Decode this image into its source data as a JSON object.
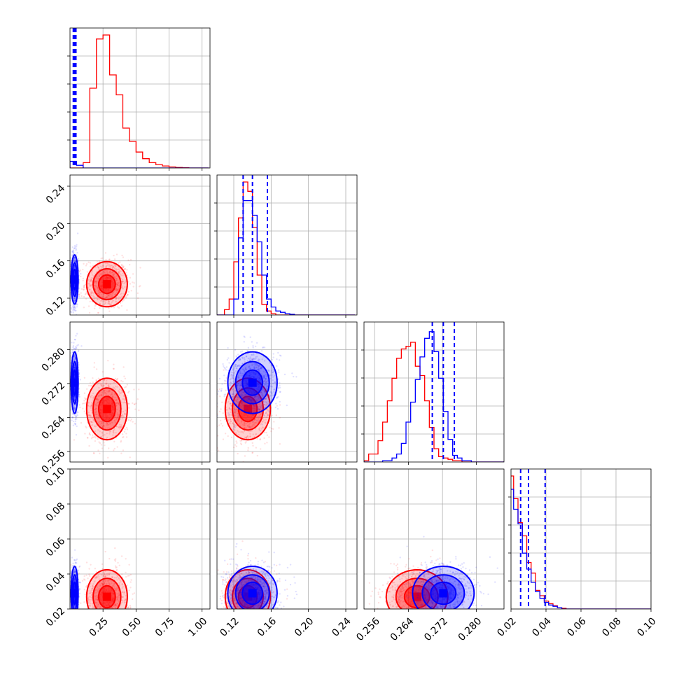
{
  "colors": {
    "red": "#ff0000",
    "blue": "#0000ff",
    "grid": "#b0b0b0",
    "axes": "#000000"
  },
  "chart_data": {
    "type": "corner",
    "variables": [
      {
        "range": [
          0.0,
          1.06
        ],
        "ticks": [
          0.25,
          0.5,
          0.75,
          1.0
        ],
        "tick_labels": [
          "0.25",
          "0.50",
          "0.75",
          "1.00"
        ]
      },
      {
        "range": [
          0.102,
          0.252
        ],
        "ticks": [
          0.12,
          0.16,
          0.2,
          0.24
        ],
        "tick_labels": [
          "0.12",
          "0.16",
          "0.20",
          "0.24"
        ]
      },
      {
        "range": [
          0.2535,
          0.2865
        ],
        "ticks": [
          0.256,
          0.264,
          0.272,
          0.28
        ],
        "tick_labels": [
          "0.256",
          "0.264",
          "0.272",
          "0.280"
        ]
      },
      {
        "range": [
          0.02,
          0.1
        ],
        "ticks": [
          0.02,
          0.04,
          0.06,
          0.08,
          0.1
        ],
        "tick_labels": [
          "0.02",
          "0.04",
          "0.06",
          "0.08",
          "0.10"
        ]
      }
    ],
    "grid": true,
    "series": [
      {
        "color": "#ff0000",
        "histograms": [
          {
            "edges_start": 0.0,
            "bin_width": 0.05,
            "counts": [
              0,
              0,
              0.04,
              0.6,
              0.97,
              1.0,
              0.7,
              0.55,
              0.3,
              0.2,
              0.12,
              0.07,
              0.04,
              0.025,
              0.015,
              0.008,
              0.004,
              0.002,
              0,
              0,
              0
            ]
          },
          {
            "edges_start": 0.1,
            "bin_width": 0.005,
            "counts": [
              0,
              0,
              0.04,
              0.12,
              0.4,
              0.73,
              1.0,
              0.93,
              0.66,
              0.3,
              0.08,
              0.03,
              0.01,
              0,
              0,
              0,
              0,
              0,
              0,
              0,
              0,
              0,
              0,
              0,
              0,
              0,
              0,
              0,
              0,
              0
            ]
          },
          {
            "edges_start": 0.2535,
            "bin_width": 0.0011,
            "counts": [
              0.01,
              0.06,
              0.06,
              0.16,
              0.3,
              0.46,
              0.63,
              0.78,
              0.85,
              0.87,
              0.9,
              0.72,
              0.65,
              0.46,
              0.26,
              0.1,
              0.04,
              0.03,
              0.02,
              0.01,
              0.01,
              0,
              0,
              0,
              0,
              0,
              0,
              0,
              0,
              0
            ]
          },
          {
            "edges_start": 0.0165,
            "bin_width": 0.0025,
            "counts": [
              0.02,
              1.0,
              0.83,
              0.65,
              0.55,
              0.35,
              0.27,
              0.14,
              0.1,
              0.06,
              0.04,
              0.025,
              0.01,
              0.005,
              0,
              0,
              0,
              0,
              0,
              0,
              0,
              0,
              0,
              0,
              0,
              0,
              0,
              0,
              0,
              0,
              0,
              0,
              0,
              0
            ]
          }
        ],
        "centers": [
          0.28,
          0.135,
          0.266,
          0.027
        ],
        "sigmas": [
          0.07,
          0.011,
          0.0033,
          0.007
        ]
      },
      {
        "color": "#0000ff",
        "histograms": [
          {
            "edges_start": 0.0,
            "bin_width": 0.05,
            "counts": [
              0.05,
              0.02,
              0,
              0,
              0,
              0,
              0,
              0,
              0,
              0,
              0,
              0,
              0,
              0,
              0,
              0,
              0,
              0,
              0,
              0,
              0
            ]
          },
          {
            "edges_start": 0.1,
            "bin_width": 0.005,
            "counts": [
              0,
              0,
              0,
              0,
              0.12,
              0.58,
              0.86,
              0.86,
              0.75,
              0.55,
              0.3,
              0.12,
              0.06,
              0.03,
              0.02,
              0.01,
              0.005,
              0,
              0,
              0,
              0,
              0,
              0,
              0,
              0,
              0,
              0,
              0,
              0,
              0
            ]
          },
          {
            "edges_start": 0.2535,
            "bin_width": 0.0011,
            "counts": [
              0,
              0,
              0,
              0,
              0.01,
              0.01,
              0.03,
              0.06,
              0.14,
              0.3,
              0.45,
              0.62,
              0.79,
              0.93,
              0.98,
              0.83,
              0.63,
              0.38,
              0.17,
              0.05,
              0.03,
              0.01,
              0.01,
              0,
              0,
              0,
              0,
              0,
              0,
              0
            ]
          },
          {
            "edges_start": 0.0165,
            "bin_width": 0.0025,
            "counts": [
              0.04,
              0.9,
              0.75,
              0.64,
              0.42,
              0.3,
              0.2,
              0.13,
              0.08,
              0.05,
              0.03,
              0.02,
              0.01,
              0,
              0,
              0,
              0,
              0,
              0,
              0,
              0,
              0,
              0,
              0,
              0,
              0,
              0,
              0,
              0,
              0,
              0,
              0,
              0,
              0
            ]
          }
        ],
        "centers": [
          0.035,
          0.14,
          0.2722,
          0.029
        ],
        "sigmas": [
          0.012,
          0.012,
          0.0033,
          0.007
        ],
        "quantile_lines": [
          [
            0.025,
            0.035,
            0.045
          ],
          [
            0.13,
            0.14,
            0.156
          ],
          [
            0.2696,
            0.2722,
            0.2748
          ],
          [
            0.0255,
            0.03,
            0.0395
          ]
        ]
      }
    ]
  }
}
